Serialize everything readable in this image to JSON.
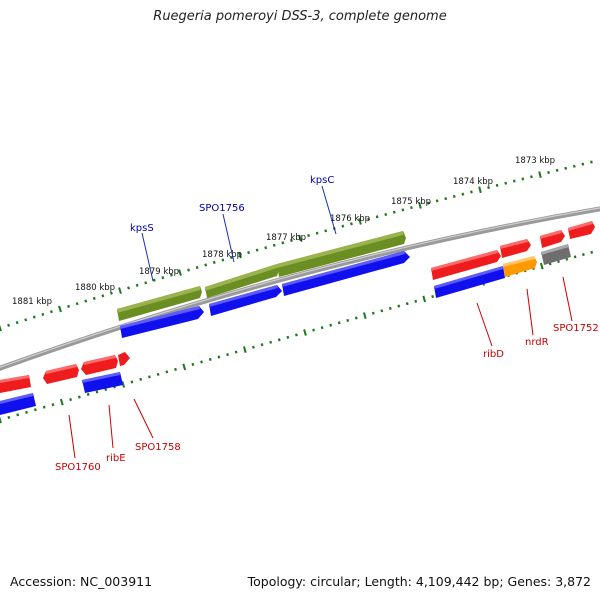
{
  "title": "Ruegeria pomeroyi DSS-3, complete genome",
  "footer": {
    "accession": "Accession: NC_003911",
    "summary": "Topology: circular; Length: 4,109,442 bp; Genes: 3,872"
  },
  "colors": {
    "backbone": "#888888",
    "tick": "#1a7a1a",
    "forward_gene": "#ee1c1c",
    "reverse_cds": "#1010ee",
    "kps_gene": "#6b8e23",
    "nrdR_gene": "#ff9900",
    "other_gene": "#6e6e6e",
    "label_forward": "#cc0000",
    "label_reverse": "#0000aa"
  },
  "scale_labels": [
    "1881 kbp",
    "1880 kbp",
    "1879 kbp",
    "1878 kbp",
    "1877 kbp",
    "1876 kbp",
    "1875 kbp",
    "1874 kbp",
    "1873 kbp"
  ],
  "gene_labels": [
    "kpsS",
    "SPO1756",
    "kpsC",
    "ribD",
    "nrdR",
    "SPO1752",
    "SPO1760",
    "ribE",
    "SPO1758"
  ]
}
